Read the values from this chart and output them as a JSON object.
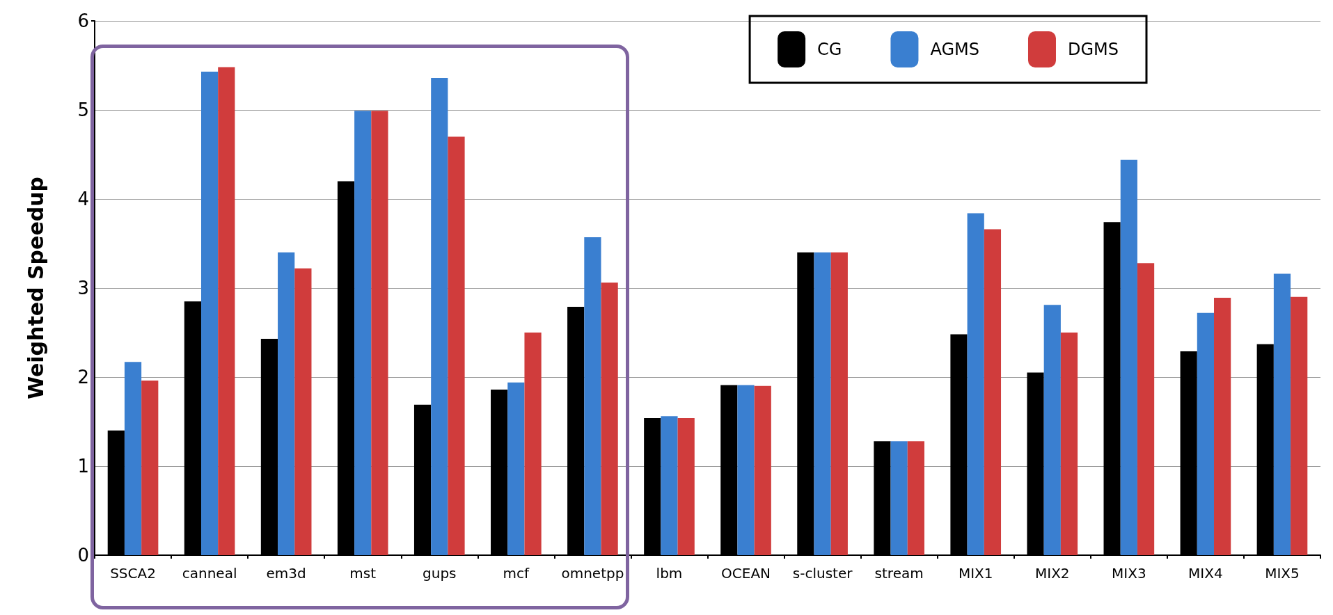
{
  "chart_data": {
    "type": "bar",
    "ylabel": "Weighted Speedup",
    "categories": [
      "SSCA2",
      "canneal",
      "em3d",
      "mst",
      "gups",
      "mcf",
      "omnetpp",
      "lbm",
      "OCEAN",
      "s-cluster",
      "stream",
      "MIX1",
      "MIX2",
      "MIX3",
      "MIX4",
      "MIX5"
    ],
    "series": [
      {
        "name": "CG",
        "color": "#000000",
        "values": [
          1.4,
          2.85,
          2.43,
          4.2,
          1.69,
          1.86,
          2.79,
          1.54,
          1.91,
          3.4,
          1.28,
          2.48,
          2.05,
          3.74,
          2.29,
          2.37
        ]
      },
      {
        "name": "AGMS",
        "color": "#3a7fd0",
        "values": [
          2.17,
          5.43,
          3.4,
          4.99,
          5.36,
          1.94,
          3.57,
          1.56,
          1.91,
          3.4,
          1.28,
          3.84,
          2.81,
          4.44,
          2.72,
          3.16
        ]
      },
      {
        "name": "DGMS",
        "color": "#d03c3c",
        "values": [
          1.96,
          5.48,
          3.22,
          4.99,
          4.7,
          2.5,
          3.06,
          1.54,
          1.9,
          3.4,
          1.28,
          3.66,
          2.5,
          3.28,
          2.89,
          2.9
        ]
      }
    ],
    "ylim": [
      0,
      6
    ],
    "yticks": [
      0,
      1,
      2,
      3,
      4,
      5,
      6
    ],
    "grid": "y",
    "legend": "top right"
  }
}
